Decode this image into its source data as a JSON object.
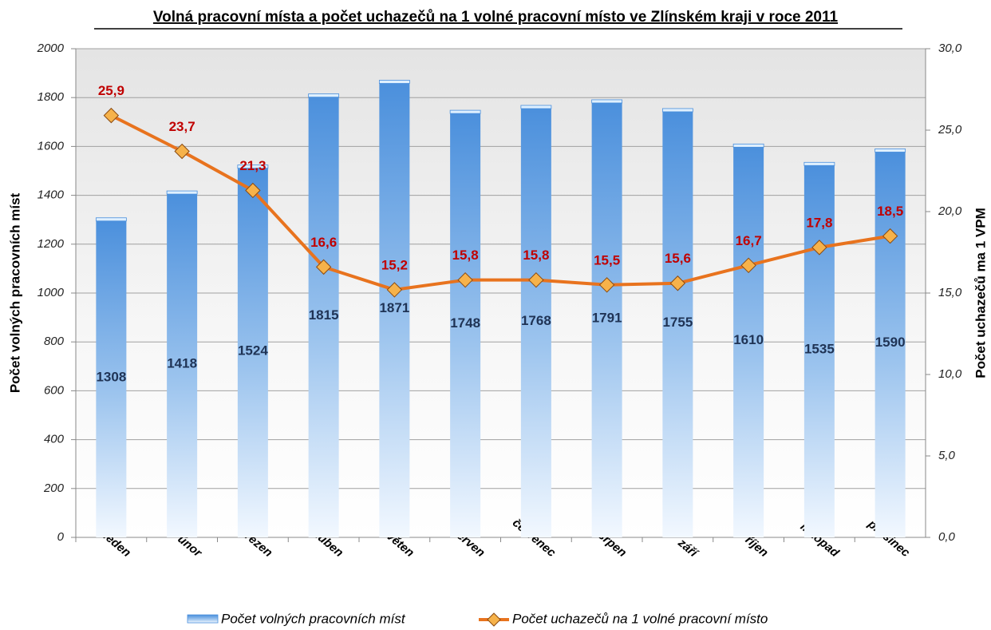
{
  "chart_data": {
    "type": "combo",
    "title": "Volná pracovní místa a počet uchazečů na 1 volné pracovní místo ve Zlínském kraji v roce 2011",
    "ylabel": "Počet volných pracovních míst",
    "y2label": "Počet uchazečů ma 1 VPM",
    "categories": [
      "leden",
      "únor",
      "březen",
      "duben",
      "květen",
      "červen",
      "červenec",
      "srpen",
      "září",
      "říjen",
      "listopad",
      "prosinec"
    ],
    "series": [
      {
        "name": "Počet volných pracovních míst",
        "type": "bar",
        "color": "#4a8fdc",
        "values": [
          1308,
          1418,
          1524,
          1815,
          1871,
          1748,
          1768,
          1791,
          1755,
          1610,
          1535,
          1590
        ]
      },
      {
        "name": "Počet uchazečů na 1 volné pracovní místo",
        "type": "line",
        "color": "#e8731e",
        "axis": "y2",
        "values": [
          25.9,
          23.7,
          21.3,
          16.6,
          15.2,
          15.8,
          15.8,
          15.5,
          15.6,
          16.7,
          17.8,
          18.5
        ],
        "value_labels": [
          "25,9",
          "23,7",
          "21,3",
          "16,6",
          "15,2",
          "15,8",
          "15,8",
          "15,5",
          "15,6",
          "16,7",
          "17,8",
          "18,5"
        ]
      }
    ],
    "ylim": [
      0,
      2000
    ],
    "yticks": [
      0,
      200,
      400,
      600,
      800,
      1000,
      1200,
      1400,
      1600,
      1800,
      2000
    ],
    "y2lim": [
      0,
      30
    ],
    "y2ticks": [
      {
        "value": 0,
        "label": "0,0"
      },
      {
        "value": 5,
        "label": "5,0"
      },
      {
        "value": 10,
        "label": "10,0"
      },
      {
        "value": 15,
        "label": "15,0"
      },
      {
        "value": 20,
        "label": "20,0"
      },
      {
        "value": 25,
        "label": "25,0"
      },
      {
        "value": 30,
        "label": "30,0"
      }
    ],
    "grid": true,
    "legend": "bottom"
  }
}
